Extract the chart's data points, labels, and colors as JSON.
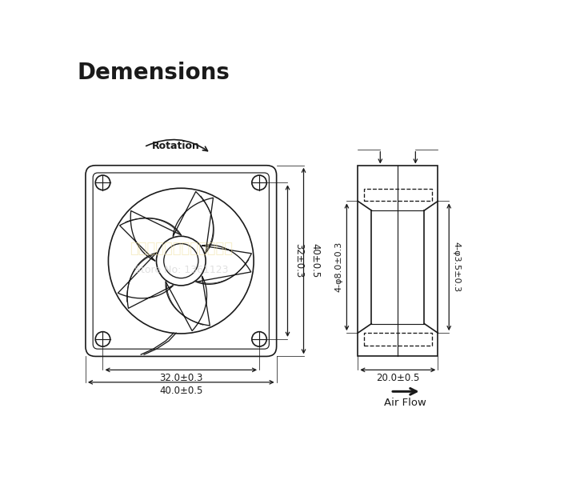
{
  "title": "Demensions",
  "title_fontsize": 20,
  "bg_color": "#ffffff",
  "line_color": "#1a1a1a",
  "watermark_color": "#f0e0a0",
  "rotation_label": "Rotation",
  "airflow_label": "Air Flow",
  "dim_32w": "32.0±0.3",
  "dim_40w": "40.0±0.5",
  "dim_32h": "32±0.3",
  "dim_40h": "40±0.5",
  "dim_20": "20.0±0.5",
  "dim_side_left": "4-φ8.0±0.3",
  "dim_side_right": "4-φ3.5±0.3"
}
